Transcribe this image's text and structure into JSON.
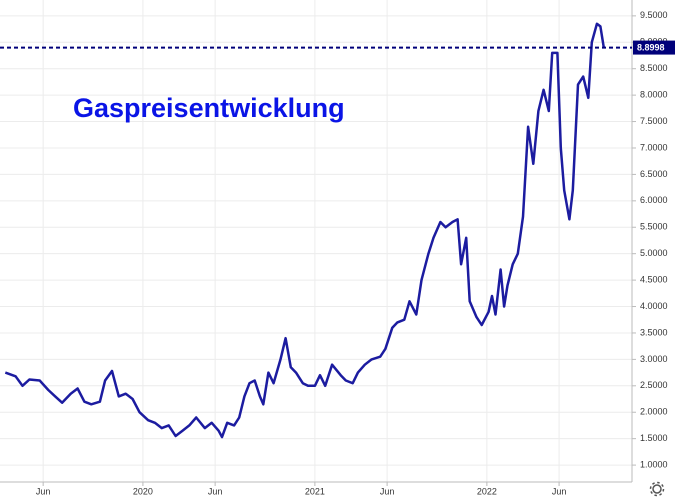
{
  "chart_data": {
    "type": "line",
    "annotation": "Gaspreisentwicklung",
    "x": [
      2019.2,
      2019.26,
      2019.3,
      2019.34,
      2019.4,
      2019.45,
      2019.49,
      2019.53,
      2019.58,
      2019.62,
      2019.66,
      2019.7,
      2019.75,
      2019.78,
      2019.82,
      2019.86,
      2019.9,
      2019.94,
      2019.98,
      2020.03,
      2020.07,
      2020.11,
      2020.15,
      2020.19,
      2020.23,
      2020.27,
      2020.31,
      2020.36,
      2020.4,
      2020.44,
      2020.46,
      2020.49,
      2020.53,
      2020.56,
      2020.59,
      2020.62,
      2020.65,
      2020.68,
      2020.7,
      2020.73,
      2020.76,
      2020.8,
      2020.83,
      2020.86,
      2020.89,
      2020.93,
      2020.96,
      2021.0,
      2021.03,
      2021.06,
      2021.1,
      2021.15,
      2021.18,
      2021.22,
      2021.25,
      2021.29,
      2021.33,
      2021.38,
      2021.41,
      2021.45,
      2021.48,
      2021.52,
      2021.55,
      2021.59,
      2021.62,
      2021.66,
      2021.69,
      2021.73,
      2021.76,
      2021.8,
      2021.83,
      2021.85,
      2021.88,
      2021.9,
      2021.94,
      2021.97,
      2022.01,
      2022.03,
      2022.05,
      2022.08,
      2022.1,
      2022.12,
      2022.15,
      2022.18,
      2022.21,
      2022.24,
      2022.27,
      2022.3,
      2022.33,
      2022.36,
      2022.38,
      2022.41,
      2022.43,
      2022.45,
      2022.48,
      2022.5,
      2022.53,
      2022.56,
      2022.59,
      2022.61,
      2022.64,
      2022.66,
      2022.68
    ],
    "values": [
      2.75,
      2.68,
      2.5,
      2.62,
      2.6,
      2.42,
      2.3,
      2.18,
      2.35,
      2.45,
      2.2,
      2.15,
      2.2,
      2.6,
      2.78,
      2.3,
      2.35,
      2.25,
      2.0,
      1.85,
      1.8,
      1.7,
      1.75,
      1.55,
      1.65,
      1.75,
      1.9,
      1.7,
      1.8,
      1.65,
      1.53,
      1.8,
      1.75,
      1.9,
      2.3,
      2.55,
      2.6,
      2.3,
      2.15,
      2.75,
      2.55,
      3.0,
      3.4,
      2.85,
      2.75,
      2.55,
      2.5,
      2.5,
      2.7,
      2.5,
      2.9,
      2.7,
      2.6,
      2.55,
      2.75,
      2.9,
      3.0,
      3.05,
      3.2,
      3.6,
      3.7,
      3.75,
      4.1,
      3.85,
      4.5,
      5.0,
      5.3,
      5.6,
      5.5,
      5.6,
      5.65,
      4.8,
      5.3,
      4.1,
      3.8,
      3.65,
      3.9,
      4.2,
      3.85,
      4.7,
      4.0,
      4.4,
      4.8,
      5.0,
      5.7,
      7.4,
      6.7,
      7.7,
      8.1,
      7.7,
      8.8,
      8.8,
      7.0,
      6.2,
      5.65,
      6.2,
      8.2,
      8.35,
      7.95,
      9.0,
      9.35,
      9.3,
      8.9
    ],
    "color": "#1c1ca0",
    "reference_value": 8.8998,
    "reference_color": "#00007a",
    "xlim": [
      2019.169,
      2022.844
    ],
    "xticks": [
      {
        "value": 2019.42,
        "label": "Jun"
      },
      {
        "value": 2020,
        "label": "2020"
      },
      {
        "value": 2020.42,
        "label": "Jun"
      },
      {
        "value": 2021,
        "label": "2021"
      },
      {
        "value": 2021.42,
        "label": "Jun"
      },
      {
        "value": 2022,
        "label": "2022"
      },
      {
        "value": 2022.42,
        "label": "Jun"
      }
    ],
    "ylim": [
      0.68,
      9.8
    ],
    "yticks": [
      {
        "value": 1,
        "label": "1.0000"
      },
      {
        "value": 1.5,
        "label": "1.5000"
      },
      {
        "value": 2,
        "label": "2.0000"
      },
      {
        "value": 2.5,
        "label": "2.5000"
      },
      {
        "value": 3,
        "label": "3.0000"
      },
      {
        "value": 3.5,
        "label": "3.5000"
      },
      {
        "value": 4,
        "label": "4.0000"
      },
      {
        "value": 4.5,
        "label": "4.5000"
      },
      {
        "value": 5,
        "label": "5.0000"
      },
      {
        "value": 5.5,
        "label": "5.5000"
      },
      {
        "value": 6,
        "label": "6.0000"
      },
      {
        "value": 6.5,
        "label": "6.5000"
      },
      {
        "value": 7,
        "label": "7.0000"
      },
      {
        "value": 7.5,
        "label": "7.5000"
      },
      {
        "value": 8,
        "label": "8.0000"
      },
      {
        "value": 8.5,
        "label": "8.5000"
      },
      {
        "value": 9,
        "label": "9.0000"
      },
      {
        "value": 9.5,
        "label": "9.5000"
      }
    ],
    "grid": true
  }
}
